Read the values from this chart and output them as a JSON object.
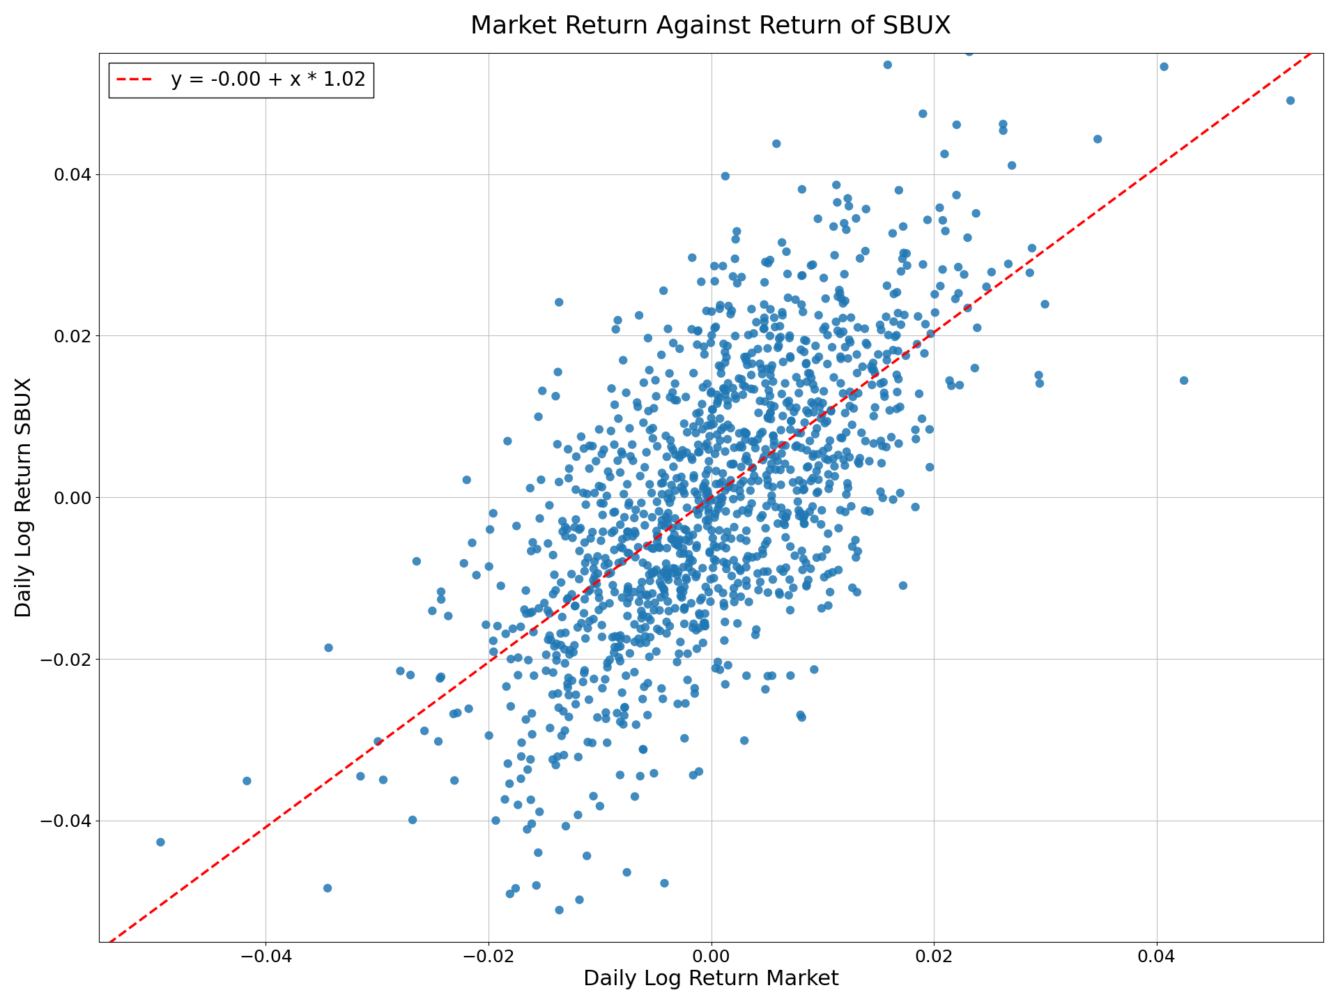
{
  "title": "Market Return Against Return of SBUX",
  "xlabel": "Daily Log Return Market",
  "ylabel": "Daily Log Return SBUX",
  "intercept": -0.0,
  "slope": 1.02,
  "legend_label": "y = -0.00 + x * 1.02",
  "point_color": "#1f77b4",
  "line_color": "red",
  "xlim": [
    -0.055,
    0.055
  ],
  "ylim": [
    -0.055,
    0.055
  ],
  "n_points": 1260,
  "seed": 15,
  "market_std": 0.01,
  "residual_std": 0.013,
  "title_fontsize": 26,
  "label_fontsize": 22,
  "tick_fontsize": 18,
  "legend_fontsize": 20,
  "marker_size": 80,
  "figwidth": 19.2,
  "figheight": 14.4,
  "dpi": 100
}
